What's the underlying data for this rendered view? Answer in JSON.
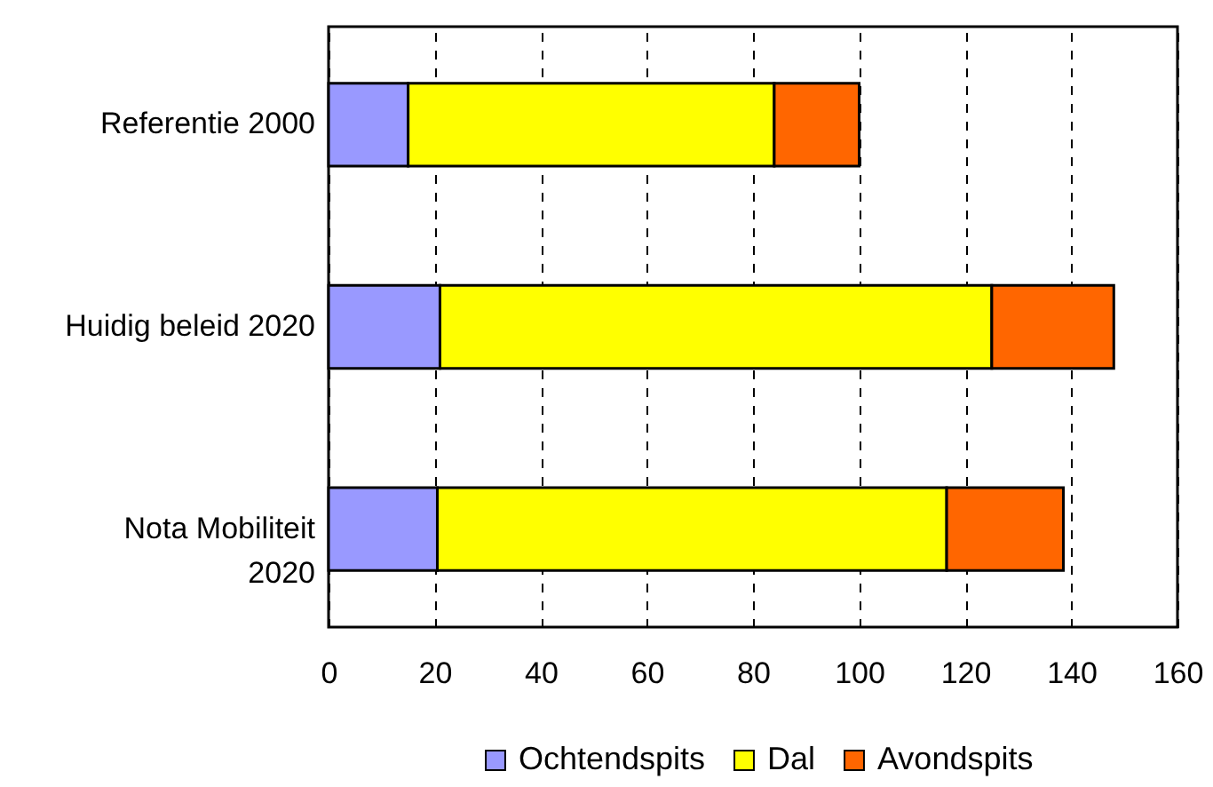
{
  "chart_data": {
    "type": "bar",
    "orientation": "horizontal",
    "stacked": true,
    "categories": [
      "Referentie 2000",
      "Huidig beleid 2020",
      "Nota Mobiliteit 2020"
    ],
    "series": [
      {
        "name": "Ochtendspits",
        "color": "#9999ff",
        "values": [
          15,
          21,
          20.5
        ]
      },
      {
        "name": "Dal",
        "color": "#ffff00",
        "values": [
          69,
          104,
          96
        ]
      },
      {
        "name": "Avondspits",
        "color": "#ff6600",
        "values": [
          16,
          23,
          22
        ]
      }
    ],
    "xlim": [
      0,
      160
    ],
    "xticks": [
      0,
      20,
      40,
      60,
      80,
      100,
      120,
      140,
      160
    ],
    "grid": "x",
    "legend": "bottom"
  }
}
